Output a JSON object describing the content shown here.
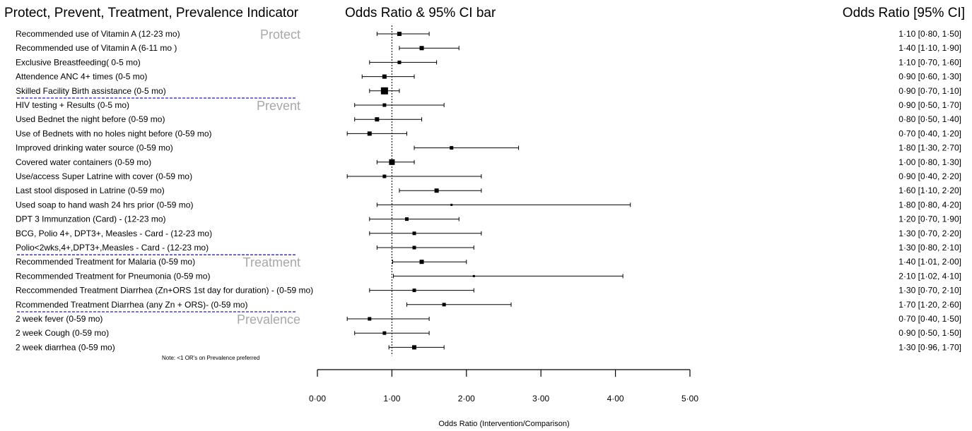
{
  "header": {
    "left_title": "Protect, Prevent, Treatment, Prevalence Indicator",
    "middle_title": "Odds Ratio & 95% CI bar",
    "right_title": "Odds Ratio [95% CI]"
  },
  "note": "Note: <1 OR's on Prevalence preferred",
  "colors": {
    "separator": "#2222cc",
    "section_label": "#a8a8a8",
    "marks": "#000000",
    "background": "#ffffff"
  },
  "chart_data": {
    "type": "forest",
    "xlabel": "Odds Ratio (Intervention/Comparison)",
    "xlim": [
      0,
      5
    ],
    "xticks": [
      "0·00",
      "1·00",
      "2·00",
      "3·00",
      "4·00",
      "5·00"
    ],
    "reference_line": 1.0,
    "sections": [
      {
        "label": "Protect",
        "start_row": 0
      },
      {
        "label": "Prevent",
        "start_row": 5
      },
      {
        "label": "Treatment",
        "start_row": 16
      },
      {
        "label": "Prevalence",
        "start_row": 20
      }
    ],
    "rows": [
      {
        "label": "Recommended use of  Vitamin A (12-23 mo)",
        "or": 1.1,
        "lo": 0.8,
        "hi": 1.5,
        "text": "1·10 [0·80, 1·50]",
        "weight": 2
      },
      {
        "label": "Recommended use of Vitamin A (6-11 mo )",
        "or": 1.4,
        "lo": 1.1,
        "hi": 1.9,
        "text": "1·40 [1·10, 1·90]",
        "weight": 2
      },
      {
        "label": "Exclusive Breastfeeding( 0-5 mo)",
        "or": 1.1,
        "lo": 0.7,
        "hi": 1.6,
        "text": "1·10 [0·70, 1·60]",
        "weight": 1
      },
      {
        "label": "Attendence ANC 4+ times (0-5 mo)",
        "or": 0.9,
        "lo": 0.6,
        "hi": 1.3,
        "text": "0·90 [0·60, 1·30]",
        "weight": 2
      },
      {
        "label": "Skilled Facility Birth assistance (0-5 mo)",
        "or": 0.9,
        "lo": 0.7,
        "hi": 1.1,
        "text": "0·90 [0·70, 1·10]",
        "weight": 4
      },
      {
        "label": "HIV testing + Results  (0-5 mo)",
        "or": 0.9,
        "lo": 0.5,
        "hi": 1.7,
        "text": "0·90 [0·50, 1·70]",
        "weight": 1
      },
      {
        "label": "Used Bednet the night before (0-59 mo)",
        "or": 0.8,
        "lo": 0.5,
        "hi": 1.4,
        "text": "0·80 [0·50, 1·40]",
        "weight": 2
      },
      {
        "label": "Use of  Bednets  with no holes night before (0-59 mo)",
        "or": 0.7,
        "lo": 0.4,
        "hi": 1.2,
        "text": "0·70 [0·40, 1·20]",
        "weight": 2
      },
      {
        "label": "Improved drinking water source (0-59 mo)",
        "or": 1.8,
        "lo": 1.3,
        "hi": 2.7,
        "text": "1·80 [1·30, 2·70]",
        "weight": 1
      },
      {
        "label": "Covered water containers (0-59 mo)",
        "or": 1.0,
        "lo": 0.8,
        "hi": 1.3,
        "text": "1·00 [0·80, 1·30]",
        "weight": 3
      },
      {
        "label": "Use/access Super Latrine with cover  (0-59 mo)",
        "or": 0.9,
        "lo": 0.4,
        "hi": 2.2,
        "text": "0·90 [0·40, 2·20]",
        "weight": 1
      },
      {
        "label": "Last stool disposed in Latrine (0-59 mo)",
        "or": 1.6,
        "lo": 1.1,
        "hi": 2.2,
        "text": "1·60 [1·10, 2·20]",
        "weight": 2
      },
      {
        "label": "Used soap to hand wash 24 hrs prior (0-59 mo)",
        "or": 1.8,
        "lo": 0.8,
        "hi": 4.2,
        "text": "1·80 [0·80, 4·20]",
        "weight": 0
      },
      {
        "label": "DPT 3 Immunzation (Card) - (12-23 mo)",
        "or": 1.2,
        "lo": 0.7,
        "hi": 1.9,
        "text": "1·20 [0·70, 1·90]",
        "weight": 1
      },
      {
        "label": "BCG, Polio 4+, DPT3+, Measles - Card - (12-23 mo)",
        "or": 1.3,
        "lo": 0.7,
        "hi": 2.2,
        "text": "1·30 [0·70, 2·20]",
        "weight": 1
      },
      {
        "label": "Polio<2wks,4+,DPT3+,Measles - Card - (12-23 mo)",
        "or": 1.3,
        "lo": 0.8,
        "hi": 2.1,
        "text": "1·30 [0·80, 2·10]",
        "weight": 1
      },
      {
        "label": "Recommended Treatment for Malaria (0-59 mo)",
        "or": 1.4,
        "lo": 1.01,
        "hi": 2.0,
        "text": "1·40 [1·01, 2·00]",
        "weight": 2
      },
      {
        "label": "Recommended Treatment for Pneumonia  (0-59 mo)",
        "or": 2.1,
        "lo": 1.02,
        "hi": 4.1,
        "text": "2·10 [1·02, 4·10]",
        "weight": 0
      },
      {
        "label": "Reccommended Treatment Diarrhea (Zn+ORS 1st day for duration) - (0-59 mo)",
        "or": 1.3,
        "lo": 0.7,
        "hi": 2.1,
        "text": "1·30 [0·70, 2·10]",
        "weight": 1
      },
      {
        "label": "Rcommended Treatment Diarrhea (any Zn + ORS)- (0-59 mo)",
        "or": 1.7,
        "lo": 1.2,
        "hi": 2.6,
        "text": "1·70 [1·20, 2·60]",
        "weight": 1
      },
      {
        "label": "2 week fever (0-59 mo)",
        "or": 0.7,
        "lo": 0.4,
        "hi": 1.5,
        "text": "0·70 [0·40, 1·50]",
        "weight": 1
      },
      {
        "label": "2 week Cough (0-59 mo)",
        "or": 0.9,
        "lo": 0.5,
        "hi": 1.5,
        "text": "0·90 [0·50, 1·50]",
        "weight": 1
      },
      {
        "label": "2 week diarrhea (0-59 mo)",
        "or": 1.3,
        "lo": 0.96,
        "hi": 1.7,
        "text": "1·30 [0·96, 1·70]",
        "weight": 2
      }
    ]
  }
}
